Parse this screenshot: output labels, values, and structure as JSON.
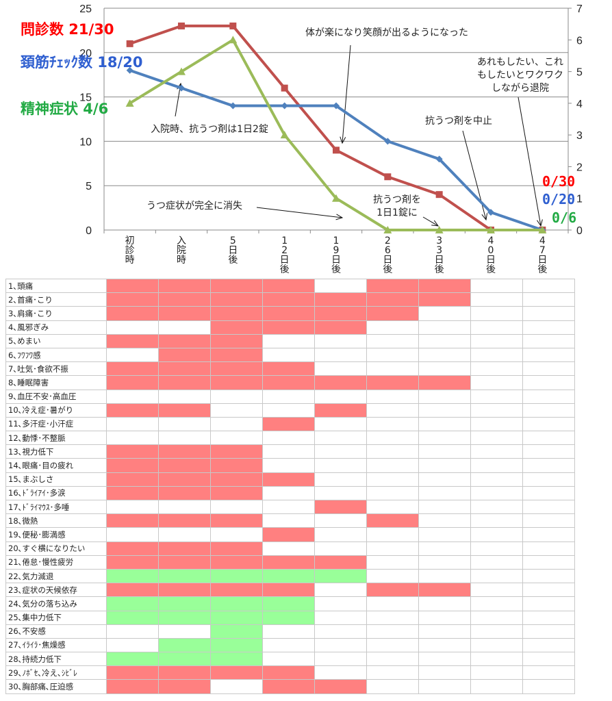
{
  "chart_data": {
    "type": "line",
    "x": [
      "初\n診\n時",
      "入\n院\n時",
      "5\n日\n後",
      "1\n2\n日\n後",
      "1\n9\n日\n後",
      "2\n6\n日\n後",
      "3\n3\n日\n後",
      "4\n0\n日\n後",
      "4\n7\n日\n後"
    ],
    "left_axis": {
      "ylim": [
        0,
        25
      ],
      "ticks": [
        "0",
        "5",
        "10",
        "15",
        "20",
        "25"
      ]
    },
    "right_axis": {
      "ylim": [
        0,
        7
      ],
      "ticks": [
        "0",
        "1",
        "2",
        "3",
        "4",
        "5",
        "6",
        "7"
      ]
    },
    "series": [
      {
        "name": "問診数",
        "axis": "left",
        "color": "#c0504d",
        "marker": "square",
        "values": [
          21,
          23,
          23,
          16,
          9,
          6,
          4,
          0,
          0
        ]
      },
      {
        "name": "頚筋ﾁｪｯｸ数",
        "axis": "left",
        "color": "#4f81bd",
        "marker": "diamond",
        "values": [
          18,
          16,
          14,
          14,
          14,
          10,
          8,
          2,
          0
        ]
      },
      {
        "name": "精神症状",
        "axis": "right",
        "color": "#9bbb59",
        "marker": "triangle",
        "values": [
          4,
          5,
          6,
          3,
          1,
          0,
          0,
          0,
          0
        ]
      }
    ],
    "legend": [
      {
        "label": "問診数 21/30",
        "color": "#ff0000"
      },
      {
        "label": "頚筋ﾁｪｯｸ数 18/20",
        "color": "#2f5fd0"
      },
      {
        "label": "精神症状 4/6",
        "color": "#22aa44"
      }
    ],
    "end_labels": [
      {
        "label": "0/30",
        "color": "#ff0000"
      },
      {
        "label": "0/20",
        "color": "#2f5fd0"
      },
      {
        "label": "0/6",
        "color": "#22aa44"
      }
    ],
    "annotations": [
      {
        "lines": [
          "体が楽になり笑顔が出るようになった"
        ]
      },
      {
        "lines": [
          "あれもしたい、これ",
          "もしたいとワクワク",
          "しながら退院"
        ]
      },
      {
        "lines": [
          "入院時、抗うつ剤は1日2錠"
        ]
      },
      {
        "lines": [
          "抗うつ剤を中止"
        ]
      },
      {
        "lines": [
          "抗うつ剤を",
          "1日1錠に"
        ]
      },
      {
        "lines": [
          "うつ症状が完全に消失"
        ]
      }
    ]
  },
  "symptom_table": {
    "colors": {
      "red": "#ff8080",
      "green": "#99ff99"
    },
    "rows": [
      {
        "label": "1､頭痛",
        "color": "red",
        "cells": [
          1,
          1,
          1,
          1,
          0,
          1,
          1,
          0,
          0
        ]
      },
      {
        "label": "2､首痛･こり",
        "color": "red",
        "cells": [
          1,
          1,
          1,
          1,
          1,
          1,
          1,
          0,
          0
        ]
      },
      {
        "label": "3､肩痛･こり",
        "color": "red",
        "cells": [
          1,
          1,
          1,
          1,
          1,
          1,
          0,
          0,
          0
        ]
      },
      {
        "label": "4､風邪ぎみ",
        "color": "red",
        "cells": [
          0,
          0,
          1,
          1,
          1,
          0,
          0,
          0,
          0
        ]
      },
      {
        "label": "5､めまい",
        "color": "red",
        "cells": [
          1,
          1,
          1,
          0,
          0,
          0,
          0,
          0,
          0
        ]
      },
      {
        "label": "6､ﾌﾜﾌﾜ感",
        "color": "red",
        "cells": [
          0,
          1,
          1,
          0,
          0,
          0,
          0,
          0,
          0
        ]
      },
      {
        "label": "7､吐気･食欲不振",
        "color": "red",
        "cells": [
          1,
          1,
          1,
          1,
          0,
          0,
          0,
          0,
          0
        ]
      },
      {
        "label": "8､睡眠障害",
        "color": "red",
        "cells": [
          1,
          1,
          1,
          1,
          1,
          1,
          1,
          0,
          0
        ]
      },
      {
        "label": "9､血圧不安･高血圧",
        "color": "red",
        "cells": [
          0,
          0,
          0,
          0,
          0,
          0,
          0,
          0,
          0
        ]
      },
      {
        "label": "10､冷え症･暑がり",
        "color": "red",
        "cells": [
          1,
          1,
          0,
          0,
          1,
          0,
          0,
          0,
          0
        ]
      },
      {
        "label": "11､多汗症･小汗症",
        "color": "red",
        "cells": [
          0,
          0,
          0,
          1,
          0,
          0,
          0,
          0,
          0
        ]
      },
      {
        "label": "12､動悸･不整脈",
        "color": "red",
        "cells": [
          0,
          0,
          0,
          0,
          0,
          0,
          0,
          0,
          0
        ]
      },
      {
        "label": "13､視力低下",
        "color": "red",
        "cells": [
          1,
          1,
          1,
          0,
          0,
          0,
          0,
          0,
          0
        ]
      },
      {
        "label": "14､眼痛･目の疲れ",
        "color": "red",
        "cells": [
          1,
          1,
          1,
          0,
          0,
          0,
          0,
          0,
          0
        ]
      },
      {
        "label": "15､まぶしさ",
        "color": "red",
        "cells": [
          1,
          1,
          1,
          1,
          0,
          0,
          0,
          0,
          0
        ]
      },
      {
        "label": "16､ﾄﾞﾗｲｱｲ･多涙",
        "color": "red",
        "cells": [
          1,
          1,
          1,
          0,
          0,
          0,
          0,
          0,
          0
        ]
      },
      {
        "label": "17､ﾄﾞﾗｲﾏｳｽ･多唾",
        "color": "red",
        "cells": [
          0,
          0,
          0,
          0,
          1,
          0,
          0,
          0,
          0
        ]
      },
      {
        "label": "18､微熱",
        "color": "red",
        "cells": [
          1,
          1,
          1,
          0,
          0,
          1,
          0,
          0,
          0
        ]
      },
      {
        "label": "19､便秘･膨満感",
        "color": "red",
        "cells": [
          0,
          0,
          0,
          1,
          0,
          0,
          0,
          0,
          0
        ]
      },
      {
        "label": "20､すぐ横になりたい",
        "color": "red",
        "cells": [
          1,
          1,
          1,
          0,
          0,
          0,
          0,
          0,
          0
        ]
      },
      {
        "label": "21､倦怠･慢性疲労",
        "color": "red",
        "cells": [
          1,
          1,
          1,
          1,
          1,
          0,
          0,
          0,
          0
        ]
      },
      {
        "label": "22､気力減退",
        "color": "green",
        "cells": [
          1,
          1,
          1,
          1,
          1,
          0,
          0,
          0,
          0
        ]
      },
      {
        "label": "23､症状の天候依存",
        "color": "red",
        "cells": [
          1,
          1,
          1,
          1,
          0,
          1,
          1,
          0,
          0
        ]
      },
      {
        "label": "24､気分の落ち込み",
        "color": "green",
        "cells": [
          1,
          1,
          1,
          1,
          0,
          0,
          0,
          0,
          0
        ]
      },
      {
        "label": "25､集中力低下",
        "color": "green",
        "cells": [
          1,
          1,
          1,
          1,
          0,
          0,
          0,
          0,
          0
        ]
      },
      {
        "label": "26､不安感",
        "color": "green",
        "cells": [
          0,
          0,
          1,
          0,
          0,
          0,
          0,
          0,
          0
        ]
      },
      {
        "label": "27､ｲﾗｲﾗ･焦燥感",
        "color": "green",
        "cells": [
          0,
          1,
          1,
          0,
          0,
          0,
          0,
          0,
          0
        ]
      },
      {
        "label": "28､持続力低下",
        "color": "green",
        "cells": [
          1,
          1,
          1,
          0,
          0,
          0,
          0,
          0,
          0
        ]
      },
      {
        "label": "29､ﾉﾎﾞｾ､冷え､ｼﾋﾞﾚ",
        "color": "red",
        "cells": [
          1,
          1,
          1,
          1,
          0,
          0,
          0,
          0,
          0
        ]
      },
      {
        "label": "30､胸部痛､圧迫感",
        "color": "red",
        "cells": [
          1,
          1,
          0,
          1,
          1,
          0,
          0,
          0,
          0
        ]
      }
    ]
  }
}
